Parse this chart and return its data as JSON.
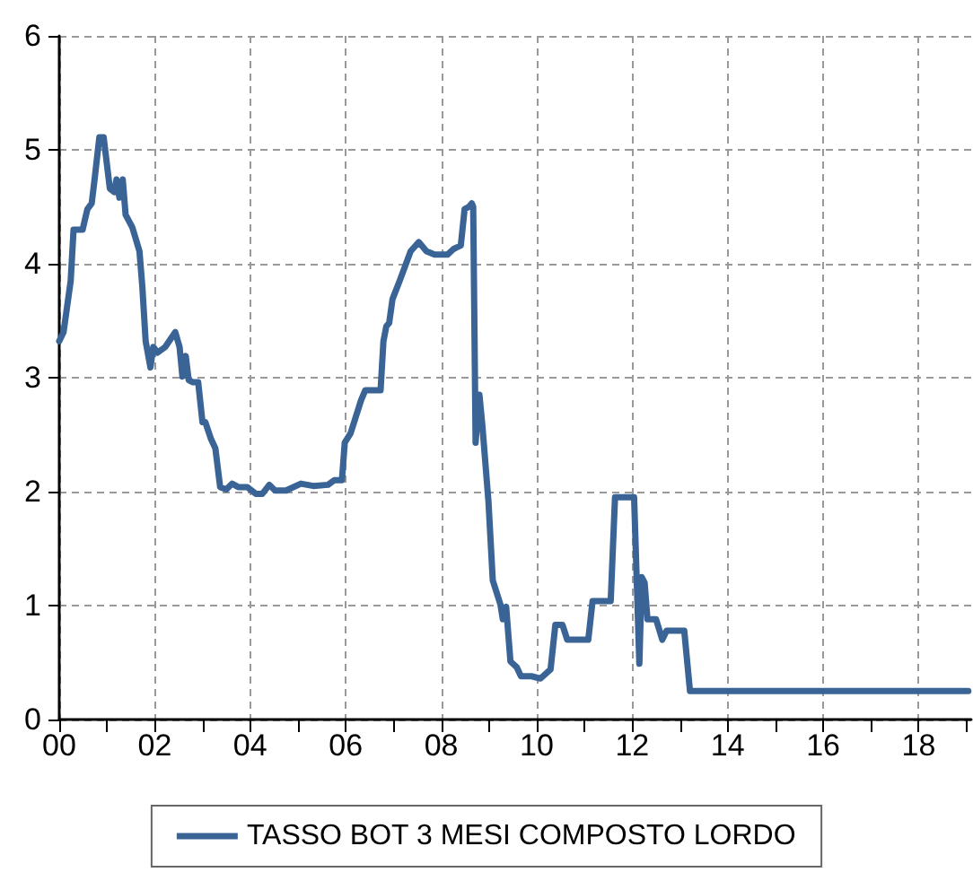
{
  "chart_data": {
    "type": "line",
    "x": [
      2000.0,
      2000.09,
      2000.24,
      2000.3,
      2000.49,
      2000.59,
      2000.68,
      2000.74,
      2000.84,
      2000.93,
      2001.06,
      2001.15,
      2001.2,
      2001.26,
      2001.33,
      2001.39,
      2001.53,
      2001.68,
      2001.74,
      2001.81,
      2001.91,
      2001.97,
      2002.06,
      2002.22,
      2002.35,
      2002.43,
      2002.52,
      2002.58,
      2002.65,
      2002.71,
      2002.8,
      2002.91,
      2003.0,
      2003.06,
      2003.18,
      2003.27,
      2003.37,
      2003.5,
      2003.62,
      2003.75,
      2003.94,
      2004.12,
      2004.25,
      2004.4,
      2004.52,
      2004.75,
      2005.06,
      2005.32,
      2005.63,
      2005.76,
      2005.92,
      2005.98,
      2006.1,
      2006.32,
      2006.41,
      2006.73,
      2006.79,
      2006.85,
      2006.91,
      2006.98,
      2007.13,
      2007.36,
      2007.53,
      2007.69,
      2007.86,
      2008.13,
      2008.26,
      2008.41,
      2008.49,
      2008.58,
      2008.64,
      2008.67,
      2008.72,
      2008.8,
      2008.86,
      2008.99,
      2009.08,
      2009.24,
      2009.29,
      2009.36,
      2009.45,
      2009.58,
      2009.67,
      2009.89,
      2010.08,
      2010.29,
      2010.39,
      2010.54,
      2010.64,
      2011.08,
      2011.17,
      2011.55,
      2011.64,
      2012.04,
      2012.15,
      2012.2,
      2012.26,
      2012.32,
      2012.5,
      2012.63,
      2012.72,
      2013.09,
      2013.21,
      2019.04
    ],
    "series": [
      {
        "name": "TASSO BOT 3 MESI COMPOSTO LORDO",
        "color": "#3a6496",
        "values": [
          3.32,
          3.4,
          3.85,
          4.3,
          4.3,
          4.48,
          4.53,
          4.74,
          5.11,
          5.11,
          4.66,
          4.63,
          4.74,
          4.58,
          4.74,
          4.43,
          4.32,
          4.11,
          3.8,
          3.32,
          3.09,
          3.27,
          3.22,
          3.27,
          3.35,
          3.4,
          3.27,
          3.01,
          3.19,
          2.98,
          2.96,
          2.96,
          2.61,
          2.61,
          2.46,
          2.38,
          2.04,
          2.02,
          2.07,
          2.04,
          2.04,
          1.98,
          1.98,
          2.06,
          2.01,
          2.01,
          2.07,
          2.05,
          2.06,
          2.1,
          2.1,
          2.43,
          2.51,
          2.8,
          2.89,
          2.89,
          3.32,
          3.45,
          3.48,
          3.69,
          3.85,
          4.11,
          4.19,
          4.11,
          4.08,
          4.08,
          4.13,
          4.16,
          4.48,
          4.5,
          4.53,
          4.5,
          2.43,
          2.85,
          2.59,
          1.91,
          1.22,
          1.01,
          0.88,
          0.99,
          0.51,
          0.46,
          0.38,
          0.38,
          0.36,
          0.44,
          0.83,
          0.83,
          0.7,
          0.7,
          1.04,
          1.04,
          1.95,
          1.95,
          0.49,
          1.25,
          1.2,
          0.88,
          0.88,
          0.7,
          0.78,
          0.78,
          0.25,
          0.25
        ]
      }
    ],
    "xlim": [
      2000,
      2019.1
    ],
    "xticks": [
      {
        "value": 2000,
        "label": "00"
      },
      {
        "value": 2001,
        "label": null
      },
      {
        "value": 2002,
        "label": "02"
      },
      {
        "value": 2003,
        "label": null
      },
      {
        "value": 2004,
        "label": "04"
      },
      {
        "value": 2005,
        "label": null
      },
      {
        "value": 2006,
        "label": "06"
      },
      {
        "value": 2007,
        "label": null
      },
      {
        "value": 2008,
        "label": "08"
      },
      {
        "value": 2009,
        "label": null
      },
      {
        "value": 2010,
        "label": "10"
      },
      {
        "value": 2011,
        "label": null
      },
      {
        "value": 2012,
        "label": "12"
      },
      {
        "value": 2013,
        "label": null
      },
      {
        "value": 2014,
        "label": "14"
      },
      {
        "value": 2015,
        "label": null
      },
      {
        "value": 2016,
        "label": "16"
      },
      {
        "value": 2017,
        "label": null
      },
      {
        "value": 2018,
        "label": "18"
      },
      {
        "value": 2019,
        "label": null
      }
    ],
    "ylim": [
      0,
      6
    ],
    "yticks": [
      0,
      1,
      2,
      3,
      4,
      5,
      6
    ],
    "grid": true,
    "legend": "bottom",
    "marker": "none",
    "line_style": "solid"
  }
}
